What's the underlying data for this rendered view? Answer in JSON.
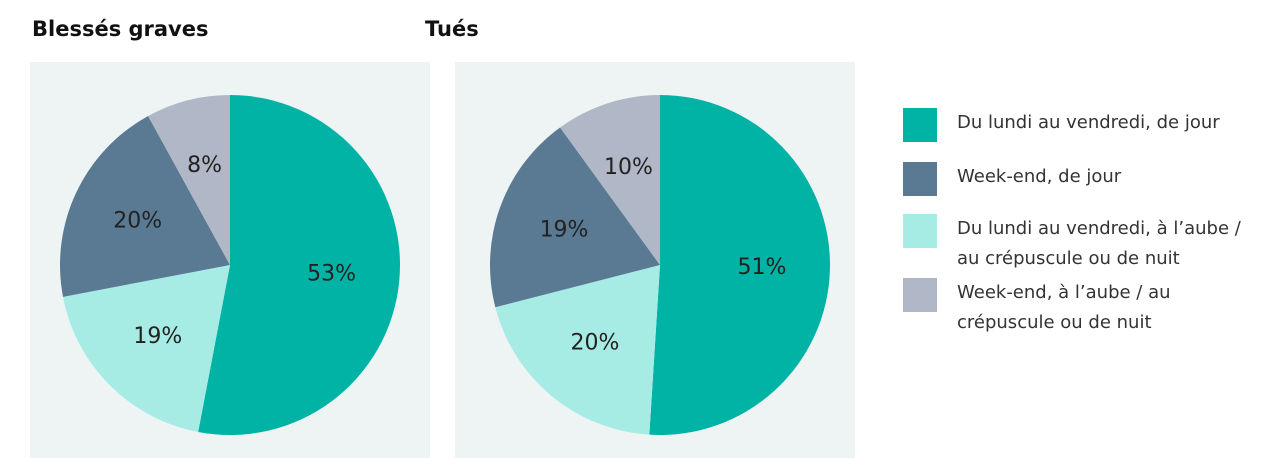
{
  "chart_data": [
    {
      "type": "pie",
      "title": "Blessés graves",
      "values": [
        53,
        19,
        20,
        8
      ],
      "value_labels": [
        "53%",
        "19%",
        "20%",
        "8%"
      ],
      "colors": [
        "#00b3a4",
        "#a6ebe4",
        "#5a7a93",
        "#b0b7c6"
      ]
    },
    {
      "type": "pie",
      "title": "Tués",
      "values": [
        51,
        20,
        19,
        10
      ],
      "value_labels": [
        "51%",
        "20%",
        "19%",
        "10%"
      ],
      "colors": [
        "#00b3a4",
        "#a6ebe4",
        "#5a7a93",
        "#b0b7c6"
      ]
    }
  ],
  "legend": {
    "labels": [
      "Du lundi au vendredi, de jour",
      "Week-end, de jour",
      "Du lundi au vendredi, à l’aube / au crépuscule ou de nuit",
      "Week-end, à l’aube / au crépuscule ou de nuit"
    ],
    "colors": [
      "#00b3a4",
      "#5a7a93",
      "#a6ebe4",
      "#b0b7c6"
    ]
  }
}
